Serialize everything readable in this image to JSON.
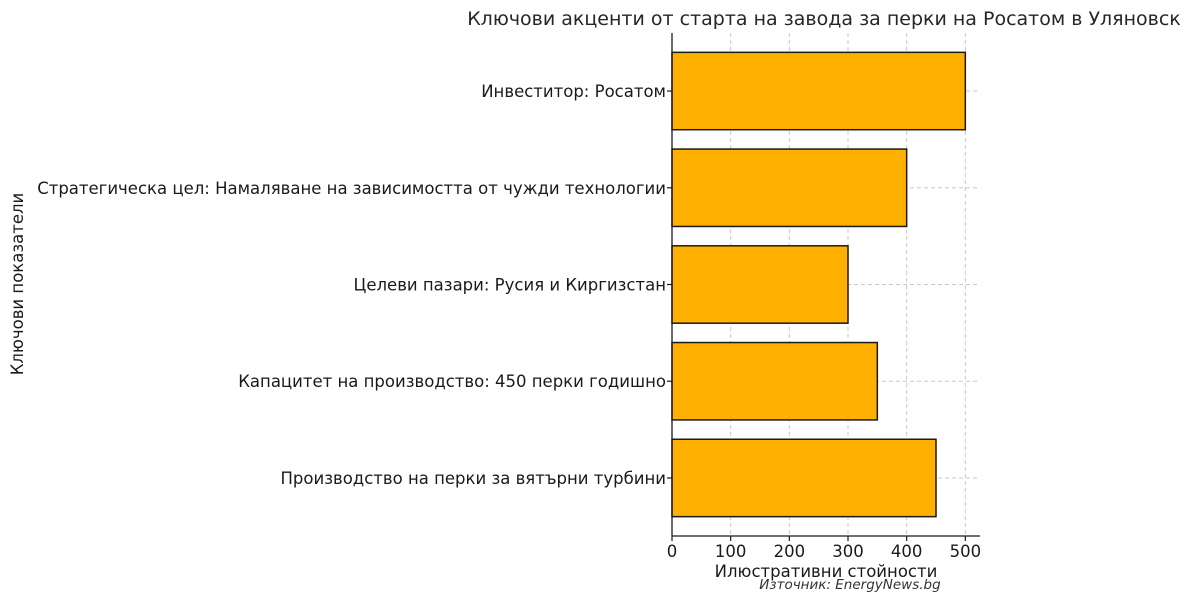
{
  "chart_data": {
    "type": "bar",
    "orientation": "horizontal",
    "title": "Ключови акценти от старта на завода за перки на Росатом в Уляновск",
    "xlabel": "Илюстративни стойности",
    "ylabel": "Ключови показатели",
    "categories": [
      "Производство на перки за вятърни турбини",
      "Капацитет на производство: 450 перки годишно",
      "Целеви пазари: Русия и Киргизстан",
      "Стратегическа цел: Намаляване на зависимостта от чужди технологии",
      "Инвеститор: Росатом"
    ],
    "values": [
      450,
      350,
      300,
      400,
      500
    ],
    "xlim": [
      0,
      525
    ],
    "xticks": [
      0,
      100,
      200,
      300,
      400,
      500
    ],
    "grid": true,
    "bar_color": "#FFB000",
    "edge_color": "#1a1a1a",
    "source_note": "Източник: EnergyNews.bg"
  }
}
